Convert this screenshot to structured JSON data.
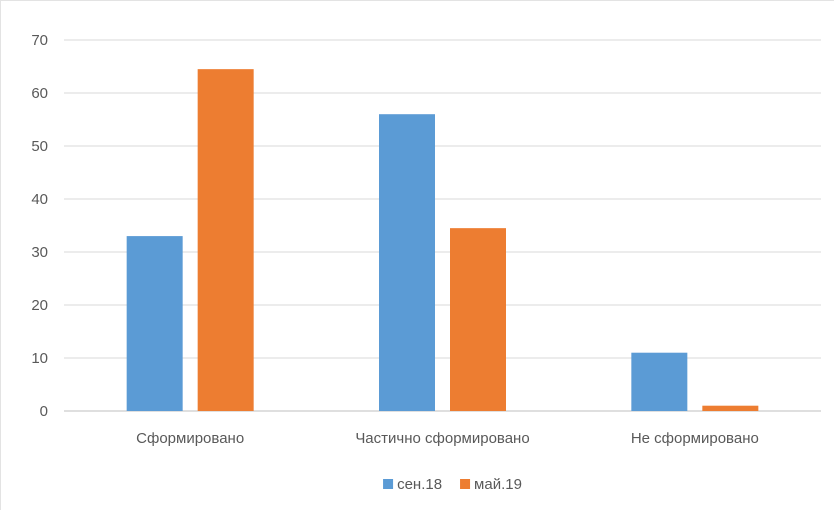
{
  "chart_data": {
    "type": "bar",
    "title": "",
    "xlabel": "",
    "ylabel": "",
    "categories": [
      "Сформировано",
      "Частично сформировано",
      "Не сформировано"
    ],
    "series": [
      {
        "name": "сен.18",
        "values": [
          33,
          56,
          11
        ],
        "color": "#5B9BD5"
      },
      {
        "name": "май.19",
        "values": [
          64.5,
          34.5,
          1
        ],
        "color": "#ED7D31"
      }
    ],
    "ylim": [
      0,
      70
    ],
    "yticks": [
      0,
      10,
      20,
      30,
      40,
      50,
      60,
      70
    ],
    "grid": true,
    "legend_position": "bottom"
  }
}
